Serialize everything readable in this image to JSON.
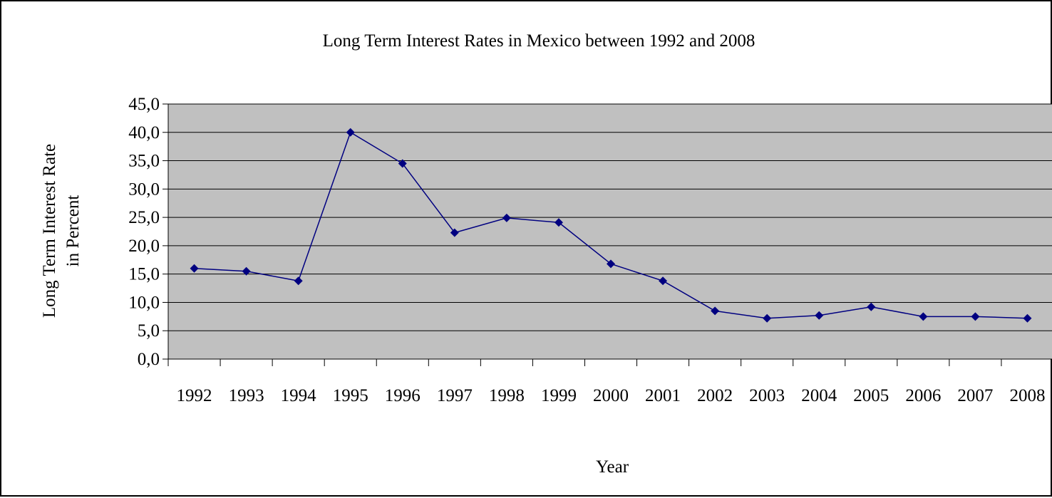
{
  "chart_data": {
    "type": "line",
    "title": "Long Term Interest Rates in Mexico between 1992 and 2008",
    "xlabel": "Year",
    "ylabel_lines": [
      "Long Term Interest Rate",
      "in Percent"
    ],
    "categories": [
      "1992",
      "1993",
      "1994",
      "1995",
      "1996",
      "1997",
      "1998",
      "1999",
      "2000",
      "2001",
      "2002",
      "2003",
      "2004",
      "2005",
      "2006",
      "2007",
      "2008"
    ],
    "values": [
      16.0,
      15.5,
      13.8,
      40.0,
      34.5,
      22.3,
      24.9,
      24.1,
      16.8,
      13.8,
      8.5,
      7.2,
      7.7,
      9.2,
      7.5,
      7.5,
      7.2
    ],
    "ylim": [
      0,
      45
    ],
    "yticks": [
      0,
      5,
      10,
      15,
      20,
      25,
      30,
      35,
      40,
      45
    ],
    "ytick_labels": [
      "0,0",
      "5,0",
      "10,0",
      "15,0",
      "20,0",
      "25,0",
      "30,0",
      "35,0",
      "40,0",
      "45,0"
    ],
    "grid": true,
    "legend": "none",
    "colors": {
      "line": "#000080",
      "marker": "#000080",
      "plot_background": "#c0c0c0",
      "gridline": "#000000"
    }
  }
}
